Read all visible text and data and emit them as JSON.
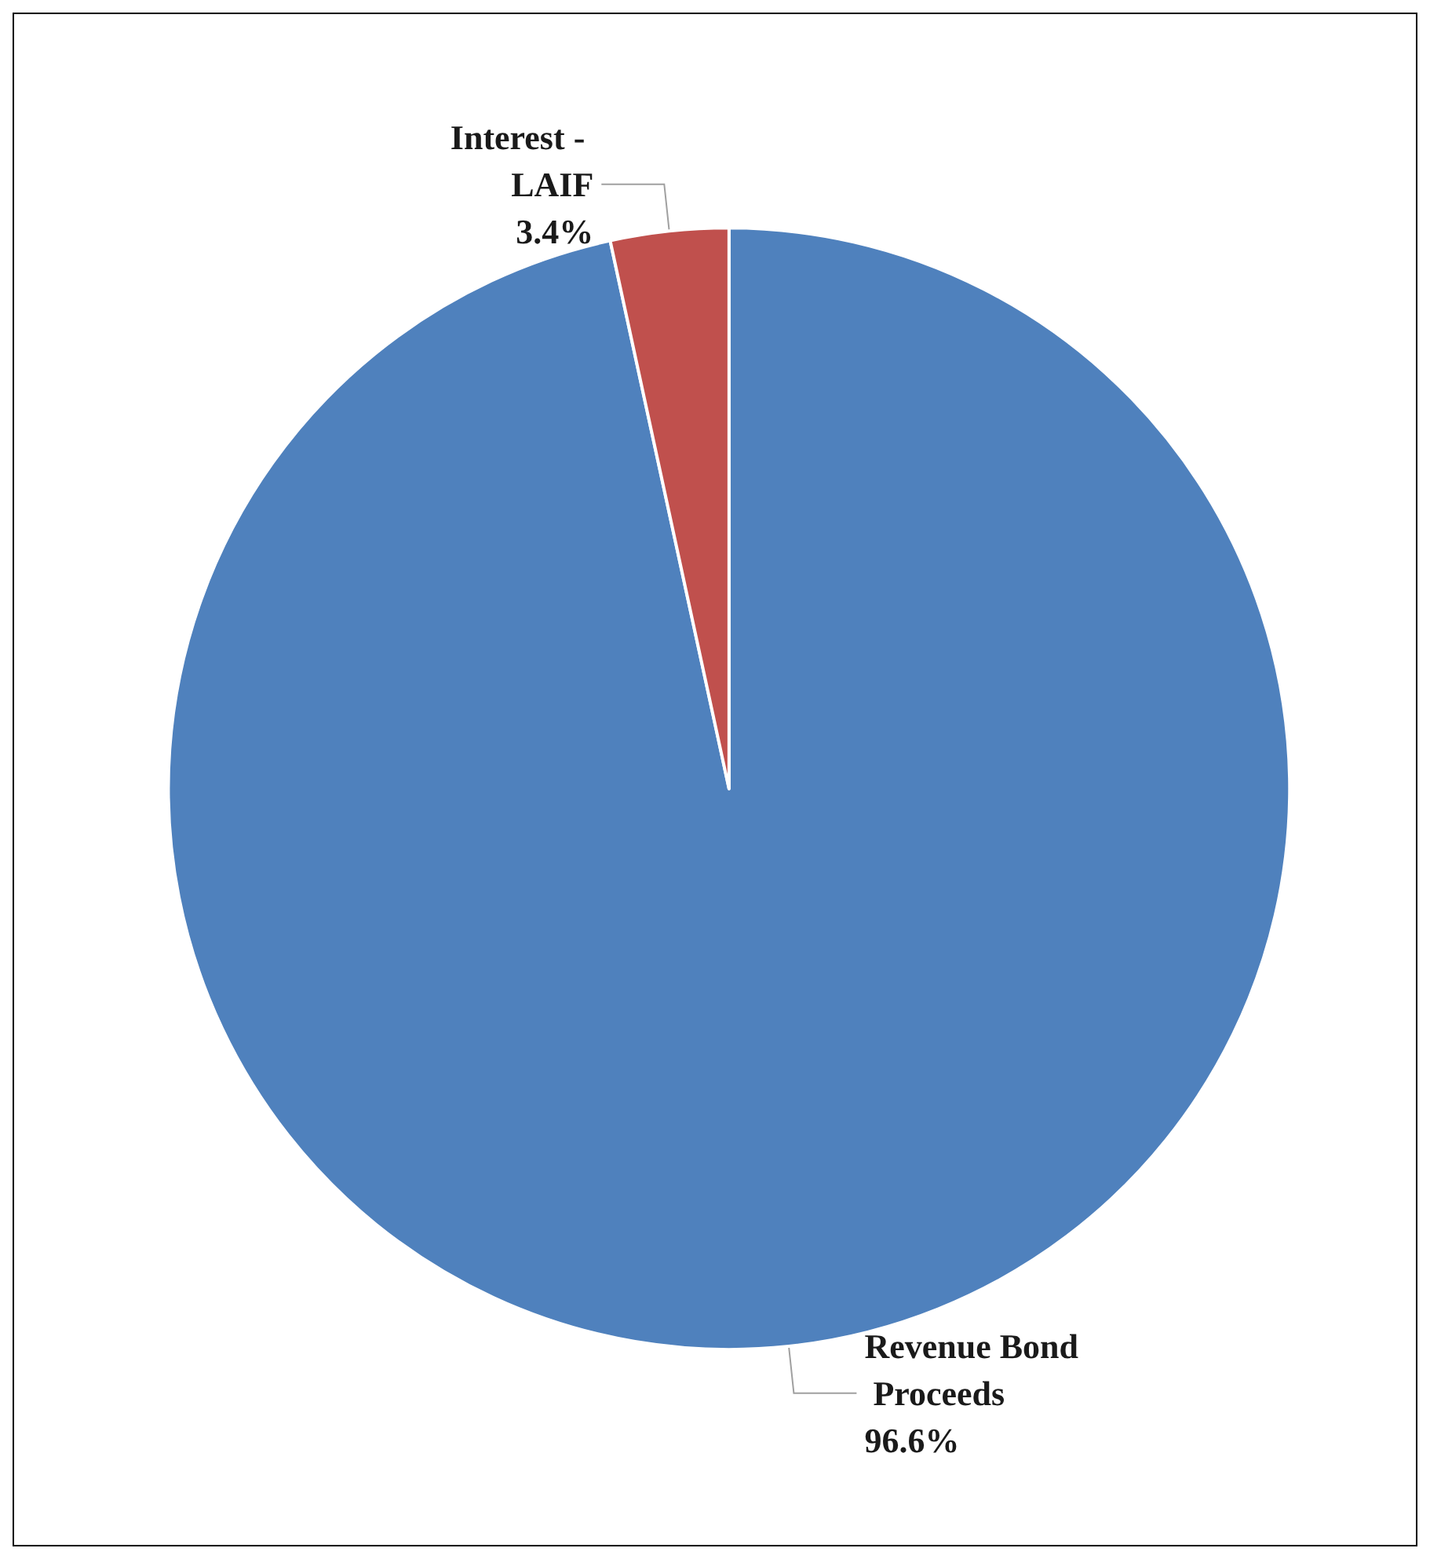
{
  "chart_data": {
    "type": "pie",
    "categories": [
      "Revenue Bond Proceeds",
      "Interest - LAIF"
    ],
    "values": [
      96.6,
      3.4
    ],
    "colors": [
      "#4f81bd",
      "#c0504d"
    ],
    "value_labels": [
      "96.6%",
      "3.4%"
    ],
    "legend": false
  }
}
